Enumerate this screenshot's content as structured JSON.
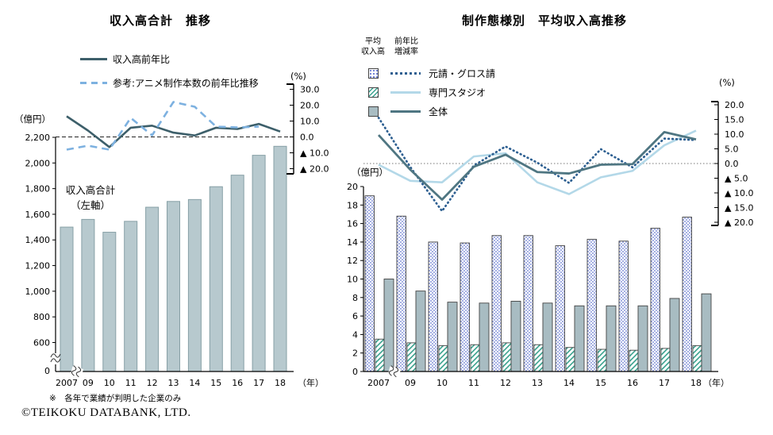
{
  "page": {
    "footnote": "※　各年で業績が判明した企業のみ",
    "copyright": "©TEIKOKU DATABANK, LTD."
  },
  "chart_data": [
    {
      "type": "bar",
      "title": "収入高合計　推移",
      "categories": [
        "2007",
        "09",
        "10",
        "11",
        "12",
        "13",
        "14",
        "15",
        "16",
        "17",
        "18"
      ],
      "x_axis_suffix": "（年）",
      "y_left_label": "（億円）",
      "y_right_label": "(%)",
      "bar_annotation": [
        "収入高合計",
        "（左軸）"
      ],
      "bars": {
        "name": "収入高合計（左軸）",
        "unit": "億円",
        "color": "#b7c9ce",
        "values": [
          1500,
          1560,
          1460,
          1545,
          1655,
          1700,
          1715,
          1815,
          1905,
          2060,
          2130
        ]
      },
      "lines": [
        {
          "name": "収入高前年比",
          "style": "solid",
          "color": "#3d5f6a",
          "unit": "%",
          "values": [
            13.0,
            4.0,
            -6.4,
            5.8,
            7.1,
            2.7,
            0.9,
            5.8,
            5.0,
            8.2,
            3.4
          ]
        },
        {
          "name": "参考:アニメ制作本数の前年比推移",
          "style": "dashed",
          "color": "#7db1e0",
          "unit": "%",
          "values": [
            -8.0,
            -5.5,
            -8.0,
            12.0,
            1.0,
            22.0,
            19.0,
            6.5,
            6.0,
            6.5,
            null
          ]
        }
      ],
      "y_left_ticks": {
        "values": [
          2200,
          2000,
          1800,
          1600,
          1400,
          1200,
          1000,
          800,
          600
        ],
        "labels": [
          "2,200",
          "2,000",
          "1,800",
          "1,600",
          "1,400",
          "1,200",
          "1,000",
          "800",
          "600"
        ],
        "zero_label": "0",
        "axis_break": true
      },
      "y_right_ticks": {
        "values": [
          30,
          20,
          10,
          0,
          -10,
          -20
        ],
        "labels": [
          "30.0",
          "20.0",
          "10.0",
          "0.0",
          "▲ 10.0",
          "▲ 20.0"
        ]
      },
      "ylim_left": [
        0,
        2200
      ],
      "ylim_right": [
        -20,
        30
      ],
      "zero_gridline": "dashed"
    },
    {
      "type": "grouped-bar+line",
      "title": "制作態様別　平均収入高推移",
      "categories": [
        "2007",
        "09",
        "10",
        "11",
        "12",
        "13",
        "14",
        "15",
        "16",
        "17",
        "18"
      ],
      "x_axis_suffix": "（年）",
      "y_left_label": "（億円）",
      "y_right_label": "(%)",
      "legend": {
        "bar_col_header": "平均\n収入高",
        "line_col_header": "前年比\n増減率"
      },
      "series": [
        {
          "name": "元請・グロス請",
          "bar_pattern": "dots",
          "bar_color": "#6577cf",
          "line_style": "dotted",
          "line_color": "#2d5f91",
          "bar_values": [
            19.0,
            16.8,
            14.0,
            13.9,
            14.7,
            14.7,
            13.6,
            14.3,
            14.1,
            15.5,
            16.7
          ],
          "line_values": [
            15.6,
            -1.2,
            -16.2,
            -0.7,
            5.8,
            0.3,
            -6.6,
            4.9,
            -1.3,
            8.5,
            8.0
          ]
        },
        {
          "name": "専門スタジオ",
          "bar_pattern": "hatch",
          "bar_color": "#38a18d",
          "line_style": "solid",
          "line_color": "#b3d8e8",
          "bar_values": [
            3.5,
            3.1,
            2.8,
            2.9,
            3.1,
            2.9,
            2.6,
            2.4,
            2.3,
            2.5,
            2.8
          ],
          "line_values": [
            -0.4,
            -5.9,
            -6.4,
            2.4,
            3.5,
            -6.4,
            -10.4,
            -4.7,
            -2.5,
            6.2,
            11.2
          ]
        },
        {
          "name": "全体",
          "bar_pattern": "solid",
          "bar_color": "#a8bcc2",
          "line_style": "solid",
          "line_color": "#4f7682",
          "bar_values": [
            10.0,
            8.7,
            7.5,
            7.4,
            7.6,
            7.4,
            7.1,
            7.1,
            7.1,
            7.9,
            8.4
          ],
          "line_values": [
            9.7,
            -2.1,
            -12.3,
            -1.1,
            3.0,
            -2.9,
            -3.4,
            -0.4,
            -0.2,
            10.7,
            8.2
          ]
        }
      ],
      "y_left_ticks": {
        "values": [
          0,
          2,
          4,
          6,
          8,
          10,
          12,
          14,
          16,
          18,
          20
        ],
        "labels": [
          "0",
          "2",
          "4",
          "6",
          "8",
          "10",
          "12",
          "14",
          "16",
          "18",
          "20"
        ]
      },
      "y_right_ticks": {
        "values": [
          20,
          15,
          10,
          5,
          0,
          -5,
          -10,
          -15,
          -20
        ],
        "labels": [
          "20.0",
          "15.0",
          "10.0",
          "5.0",
          "0.0",
          "▲ 5.0",
          "▲ 10.0",
          "▲ 15.0",
          "▲ 20.0"
        ]
      },
      "ylim_left": [
        0,
        20
      ],
      "ylim_right": [
        -20,
        20
      ],
      "zero_gridline": "dotted"
    }
  ]
}
